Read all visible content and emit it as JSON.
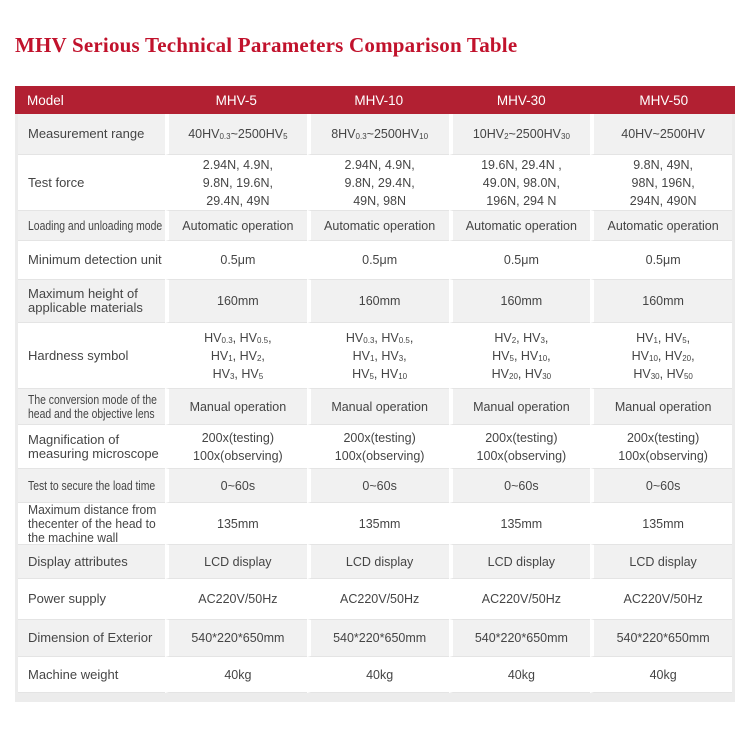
{
  "page": {
    "title": "MHV Serious Technical Parameters Comparison Table"
  },
  "colors": {
    "title": "#c1122c",
    "header_bg": "#b22032",
    "header_text": "#ffffff",
    "row_alt_bg": "#f1f1f1",
    "row_bg": "#ffffff",
    "frame": "#ececec",
    "divider": "#e4e4e4",
    "text": "#454545"
  },
  "table": {
    "header": {
      "label": "Model",
      "models": [
        "MHV-5",
        "MHV-10",
        "MHV-30",
        "MHV-50"
      ]
    },
    "rows": [
      {
        "name": "measurement-range",
        "label": [
          "Measurement range"
        ],
        "values": [
          [
            "40HV_{0.3}~2500HV_{5}"
          ],
          [
            "8HV_{0.3}~2500HV_{10}"
          ],
          [
            "10HV_{2}~2500HV_{30}"
          ],
          [
            "40HV~2500HV"
          ]
        ]
      },
      {
        "name": "test-force",
        "label": [
          "Test force"
        ],
        "values": [
          [
            "2.94N、4.9N、",
            "9.8N、19.6N、",
            "29.4N、49N"
          ],
          [
            "2.94N、4.9N、",
            "9.8N、29.4N、",
            "49N、98N"
          ],
          [
            "19.6N、29.4N 、",
            "49.0N、98.0N、",
            "196N、294 N"
          ],
          [
            "9.8N、49N、",
            "98N、196N、",
            "294N、490N"
          ]
        ]
      },
      {
        "name": "loading-unloading-mode",
        "label": [
          "Loading and unloading mode"
        ],
        "values": [
          [
            "Automatic operation"
          ],
          [
            "Automatic operation"
          ],
          [
            "Automatic operation"
          ],
          [
            "Automatic operation"
          ]
        ]
      },
      {
        "name": "minimum-detection-unit",
        "label": [
          "Minimum detection unit"
        ],
        "values": [
          [
            "0.5μm"
          ],
          [
            "0.5μm"
          ],
          [
            "0.5μm"
          ],
          [
            "0.5μm"
          ]
        ]
      },
      {
        "name": "max-height-materials",
        "label": [
          "Maximum height of",
          "applicable materials"
        ],
        "values": [
          [
            "160mm"
          ],
          [
            "160mm"
          ],
          [
            "160mm"
          ],
          [
            "160mm"
          ]
        ]
      },
      {
        "name": "hardness-symbol",
        "label": [
          "Hardness symbol"
        ],
        "values": [
          [
            "HV_{0.3}、HV_{0.5}、",
            "HV_{1}、HV_{2}、",
            "HV_{3}、HV_{5}"
          ],
          [
            "HV_{0.3}、HV_{0.5}、",
            "HV_{1}、HV_{3}、",
            "HV_{5}、HV_{10}"
          ],
          [
            "HV_{2}、HV_{3}、",
            "HV_{5}、HV_{10}、",
            "HV_{20}、HV_{30}"
          ],
          [
            "HV_{1}、HV_{5}、",
            "HV_{10}、HV_{20}、",
            "HV_{30}、HV_{50}"
          ]
        ]
      },
      {
        "name": "conversion-mode",
        "label": [
          "The conversion mode of the",
          "head and the objective lens"
        ],
        "values": [
          [
            "Manual operation"
          ],
          [
            "Manual operation"
          ],
          [
            "Manual operation"
          ],
          [
            "Manual operation"
          ]
        ]
      },
      {
        "name": "magnification",
        "label": [
          "Magnification of",
          "measuring microscope"
        ],
        "values": [
          [
            "200x(testing)",
            "100x(observing)"
          ],
          [
            "200x(testing)",
            "100x(observing)"
          ],
          [
            "200x(testing)",
            "100x(observing)"
          ],
          [
            "200x(testing)",
            "100x(observing)"
          ]
        ]
      },
      {
        "name": "load-time",
        "label": [
          "Test to secure the load time"
        ],
        "values": [
          [
            "0~60s"
          ],
          [
            "0~60s"
          ],
          [
            "0~60s"
          ],
          [
            "0~60s"
          ]
        ]
      },
      {
        "name": "max-distance",
        "label": [
          "Maximum distance from",
          "thecenter of the head to",
          "the machine wall"
        ],
        "values": [
          [
            "135mm"
          ],
          [
            "135mm"
          ],
          [
            "135mm"
          ],
          [
            "135mm"
          ]
        ]
      },
      {
        "name": "display-attributes",
        "label": [
          "Display attributes"
        ],
        "values": [
          [
            "LCD display"
          ],
          [
            "LCD display"
          ],
          [
            "LCD display"
          ],
          [
            "LCD display"
          ]
        ]
      },
      {
        "name": "power-supply",
        "label": [
          "Power supply"
        ],
        "values": [
          [
            "AC220V/50Hz"
          ],
          [
            "AC220V/50Hz"
          ],
          [
            "AC220V/50Hz"
          ],
          [
            "AC220V/50Hz"
          ]
        ]
      },
      {
        "name": "dimension-exterior",
        "label": [
          "Dimension of Exterior"
        ],
        "values": [
          [
            "540*220*650mm"
          ],
          [
            "540*220*650mm"
          ],
          [
            "540*220*650mm"
          ],
          [
            "540*220*650mm"
          ]
        ]
      },
      {
        "name": "machine-weight",
        "label": [
          "Machine weight"
        ],
        "values": [
          [
            "40kg"
          ],
          [
            "40kg"
          ],
          [
            "40kg"
          ],
          [
            "40kg"
          ]
        ]
      }
    ]
  }
}
